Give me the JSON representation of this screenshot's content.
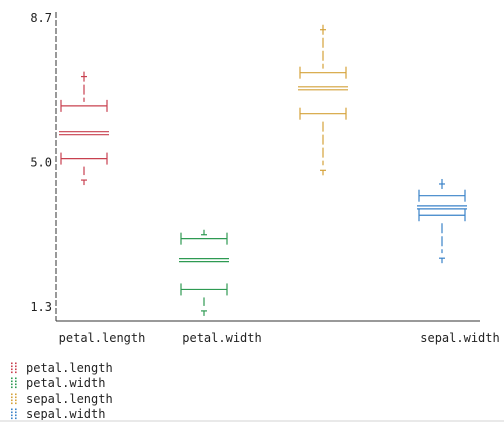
{
  "chart_data": {
    "type": "boxplot",
    "title": "",
    "xlabel": "",
    "ylabel": "",
    "ylim": [
      1.0,
      8.7
    ],
    "yticks": [
      1.3,
      5.0,
      8.7
    ],
    "ytick_labels": [
      "1.3",
      "5.0",
      "8.7"
    ],
    "categories": [
      "petal.length",
      "petal.width",
      "",
      "sepal.width"
    ],
    "series": [
      {
        "name": "petal.length",
        "color": "#c8404f",
        "min": 4.55,
        "q1": 5.1,
        "median": 5.75,
        "q3": 6.45,
        "max": 7.2
      },
      {
        "name": "petal.width",
        "color": "#2e9a52",
        "min": 1.2,
        "q1": 1.75,
        "median": 2.5,
        "q3": 3.05,
        "max": 3.15
      },
      {
        "name": "sepal.length",
        "color": "#d4a23a",
        "min": 4.8,
        "q1": 6.25,
        "median": 6.9,
        "q3": 7.3,
        "max": 8.4
      },
      {
        "name": "sepal.width",
        "color": "#3a82c8",
        "min": 2.55,
        "q1": 3.65,
        "median": 3.85,
        "q3": 4.15,
        "max": 4.45
      }
    ],
    "grid": false,
    "legend_position": "bottom-left"
  },
  "legend": {
    "items": [
      "petal.length",
      "petal.width",
      "sepal.length",
      "sepal.width"
    ]
  }
}
